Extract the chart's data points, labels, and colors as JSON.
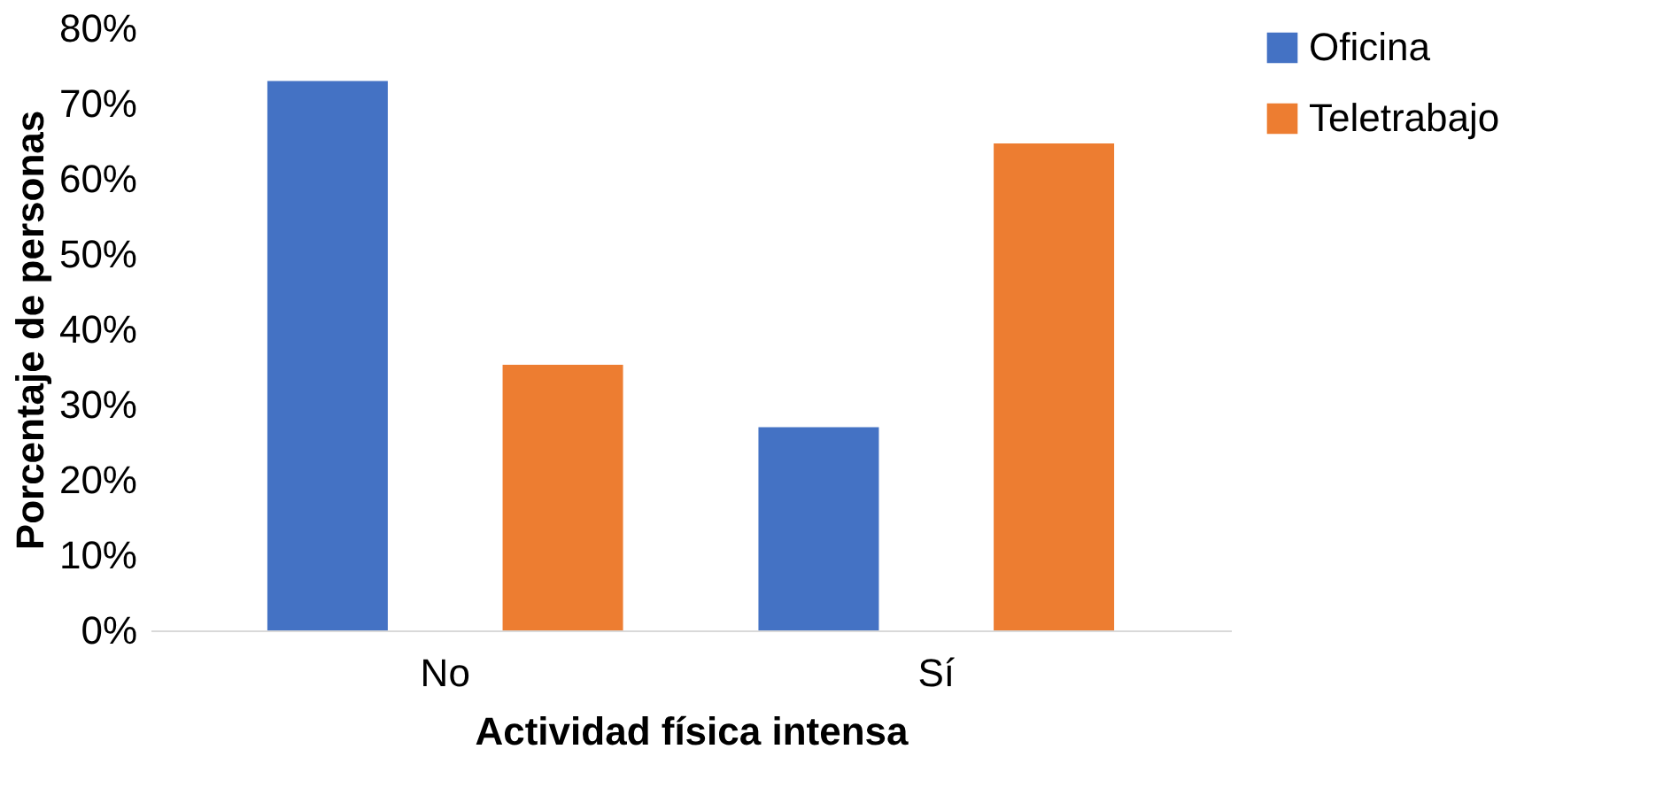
{
  "chart_data": {
    "type": "bar",
    "xlabel": "Actividad física intensa",
    "ylabel": "Porcentaje de personas",
    "categories": [
      "No",
      "Sí"
    ],
    "series": [
      {
        "name": "Oficina",
        "color": "#4472c4",
        "values": [
          73,
          27
        ]
      },
      {
        "name": "Teletrabajo",
        "color": "#ed7d31",
        "values": [
          35.3,
          64.7
        ]
      }
    ],
    "ylim": [
      0,
      80
    ],
    "yticks": [
      {
        "value": 0,
        "label": "0%"
      },
      {
        "value": 10,
        "label": "10%"
      },
      {
        "value": 20,
        "label": "20%"
      },
      {
        "value": 30,
        "label": "30%"
      },
      {
        "value": 40,
        "label": "40%"
      },
      {
        "value": 50,
        "label": "50%"
      },
      {
        "value": 60,
        "label": "60%"
      },
      {
        "value": 70,
        "label": "70%"
      },
      {
        "value": 80,
        "label": "80%"
      }
    ],
    "grid": false,
    "legend": "right"
  }
}
